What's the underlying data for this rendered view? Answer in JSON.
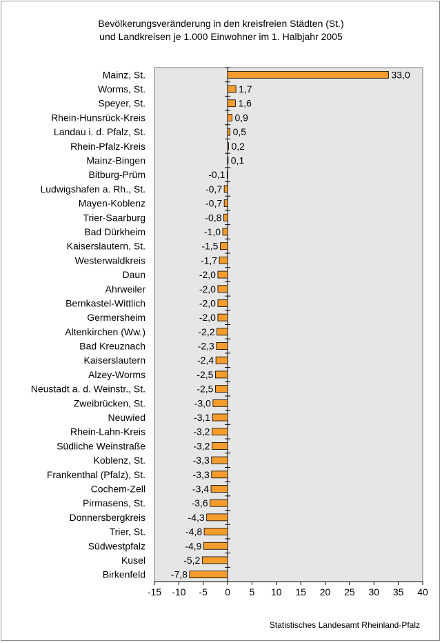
{
  "title_lines": [
    "Bevölkerungsveränderung in den kreisfreien Städten (St.)",
    "und Landkreisen je 1.000 Einwohner im 1. Halbjahr 2005"
  ],
  "source": "Statistisches Landesamt Rheinland-Pfalz",
  "colors": {
    "bar": "#f59c2f",
    "bar_stroke": "#000000",
    "plot_bg": "#e6e6e6"
  },
  "chart_data": {
    "type": "bar",
    "orientation": "horizontal",
    "title": "Bevölkerungsveränderung in den kreisfreien Städten (St.) und Landkreisen je 1.000 Einwohner im 1. Halbjahr 2005",
    "xlim": [
      -15,
      40
    ],
    "xticks": [
      -15,
      -10,
      -5,
      0,
      5,
      10,
      15,
      20,
      25,
      30,
      35,
      40
    ],
    "grid": false,
    "categories": [
      "Mainz, St.",
      "Worms, St.",
      "Speyer, St.",
      "Rhein-Hunsrück-Kreis",
      "Landau i. d. Pfalz, St.",
      "Rhein-Pfalz-Kreis",
      "Mainz-Bingen",
      "Bitburg-Prüm",
      "Ludwigshafen a. Rh., St.",
      "Mayen-Koblenz",
      "Trier-Saarburg",
      "Bad Dürkheim",
      "Kaiserslautern, St.",
      "Westerwaldkreis",
      "Daun",
      "Ahrweiler",
      "Bernkastel-Wittlich",
      "Germersheim",
      "Altenkirchen (Ww.)",
      "Bad Kreuznach",
      "Kaiserslautern",
      "Alzey-Worms",
      "Neustadt a. d. Weinstr., St.",
      "Zweibrücken, St.",
      "Neuwied",
      "Rhein-Lahn-Kreis",
      "Südliche Weinstraße",
      "Koblenz, St.",
      "Frankenthal (Pfalz), St.",
      "Cochem-Zell",
      "Pirmasens, St.",
      "Donnersbergkreis",
      "Trier, St.",
      "Südwestpfalz",
      "Kusel",
      "Birkenfeld"
    ],
    "values": [
      33.0,
      1.7,
      1.6,
      0.9,
      0.5,
      0.2,
      0.1,
      -0.1,
      -0.7,
      -0.7,
      -0.8,
      -1.0,
      -1.5,
      -1.7,
      -2.0,
      -2.0,
      -2.0,
      -2.0,
      -2.2,
      -2.3,
      -2.4,
      -2.5,
      -2.5,
      -3.0,
      -3.1,
      -3.2,
      -3.2,
      -3.3,
      -3.3,
      -3.4,
      -3.6,
      -4.3,
      -4.8,
      -4.9,
      -5.2,
      -7.8
    ],
    "value_labels": [
      "33,0",
      "1,7",
      "1,6",
      "0,9",
      "0,5",
      "0,2",
      "0,1",
      "-0,1",
      "-0,7",
      "-0,7",
      "-0,8",
      "-1,0",
      "-1,5",
      "-1,7",
      "-2,0",
      "-2,0",
      "-2,0",
      "-2,0",
      "-2,2",
      "-2,3",
      "-2,4",
      "-2,5",
      "-2,5",
      "-3,0",
      "-3,1",
      "-3,2",
      "-3,2",
      "-3,3",
      "-3,3",
      "-3,4",
      "-3,6",
      "-4,3",
      "-4,8",
      "-4,9",
      "-5,2",
      "-7,8"
    ]
  }
}
